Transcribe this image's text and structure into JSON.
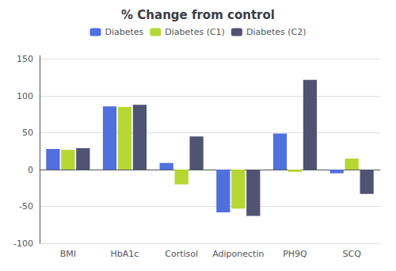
{
  "chart_data": {
    "type": "bar",
    "title": "% Change from control",
    "categories": [
      "BMI",
      "HbA1c",
      "Cortisol",
      "Adiponectin",
      "PH9Q",
      "SCQ"
    ],
    "series": [
      {
        "name": "Diabetes",
        "values": [
          28,
          86,
          9,
          -58,
          49,
          -5
        ]
      },
      {
        "name": "Diabetes (C1)",
        "values": [
          27,
          85,
          -20,
          -53,
          -3,
          15
        ]
      },
      {
        "name": "Diabetes (C2)",
        "values": [
          29,
          88,
          45,
          -63,
          122,
          -33
        ]
      }
    ],
    "ylim": [
      -100,
      155
    ],
    "yticks": [
      -100,
      -50,
      0,
      50,
      100,
      150
    ],
    "grid": true,
    "legend": "top"
  }
}
